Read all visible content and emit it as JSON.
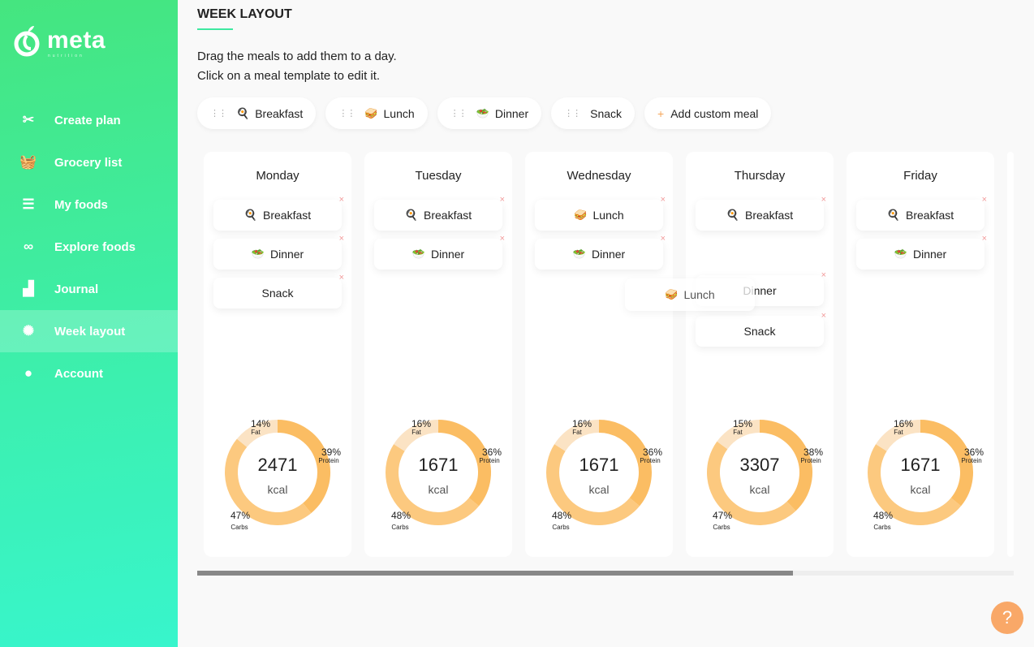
{
  "brand": {
    "name": "meta",
    "tagline": "nutrition"
  },
  "nav": [
    {
      "label": "Create plan",
      "icon": "utensils-icon",
      "glyph": "✂"
    },
    {
      "label": "Grocery list",
      "icon": "basket-icon",
      "glyph": "🧺"
    },
    {
      "label": "My foods",
      "icon": "food-box-icon",
      "glyph": "☰"
    },
    {
      "label": "Explore foods",
      "icon": "binoculars-icon",
      "glyph": "∞"
    },
    {
      "label": "Journal",
      "icon": "bar-chart-icon",
      "glyph": "▟"
    },
    {
      "label": "Week layout",
      "icon": "layout-icon",
      "glyph": "✺"
    },
    {
      "label": "Account",
      "icon": "user-icon",
      "glyph": "●"
    }
  ],
  "active_nav": 5,
  "page": {
    "title": "WEEK LAYOUT",
    "instr1": "Drag the meals to add them to a day.",
    "instr2": "Click on a meal template to edit it."
  },
  "templates": [
    {
      "label": "Breakfast",
      "emoji": "🍳"
    },
    {
      "label": "Lunch",
      "emoji": "🥪"
    },
    {
      "label": "Dinner",
      "emoji": "🥗"
    },
    {
      "label": "Snack",
      "emoji": ""
    }
  ],
  "add_custom": "Add custom meal",
  "kcal_unit": "kcal",
  "labels": {
    "fat": "Fat",
    "protein": "Protein",
    "carbs": "Carbs"
  },
  "days": [
    {
      "name": "Monday",
      "meals": [
        {
          "label": "Breakfast",
          "emoji": "🍳"
        },
        {
          "label": "Dinner",
          "emoji": "🥗"
        },
        {
          "label": "Snack",
          "emoji": ""
        }
      ],
      "kcal": "2471",
      "fat": 14,
      "protein": 39,
      "carbs": 47
    },
    {
      "name": "Tuesday",
      "meals": [
        {
          "label": "Breakfast",
          "emoji": "🍳"
        },
        {
          "label": "Dinner",
          "emoji": "🥗"
        }
      ],
      "kcal": "1671",
      "fat": 16,
      "protein": 36,
      "carbs": 48
    },
    {
      "name": "Wednesday",
      "meals": [
        {
          "label": "Lunch",
          "emoji": "🥪"
        },
        {
          "label": "Dinner",
          "emoji": "🥗"
        }
      ],
      "kcal": "1671",
      "fat": 16,
      "protein": 36,
      "carbs": 48
    },
    {
      "name": "Thursday",
      "meals": [
        {
          "label": "Breakfast",
          "emoji": "🍳"
        },
        {
          "label": "",
          "emoji": ""
        },
        {
          "label": "Dinner",
          "emoji": ""
        },
        {
          "label": "Snack",
          "emoji": ""
        }
      ],
      "kcal": "3307",
      "fat": 15,
      "protein": 38,
      "carbs": 47
    },
    {
      "name": "Friday",
      "meals": [
        {
          "label": "Breakfast",
          "emoji": "🍳"
        },
        {
          "label": "Dinner",
          "emoji": "🥗"
        }
      ],
      "kcal": "1671",
      "fat": 16,
      "protein": 36,
      "carbs": 48
    }
  ],
  "dragging": {
    "label": "Lunch",
    "emoji": "🥪"
  },
  "scroll_fraction": 0.73,
  "help": "?",
  "close_glyph": "×",
  "grip_glyph": "⋮⋮",
  "plus_glyph": "+",
  "colors": {
    "fat": "#fbe3c4",
    "protein": "#fbbd63",
    "carbs": "#fcc97f",
    "accent": "#3ee9a0"
  }
}
